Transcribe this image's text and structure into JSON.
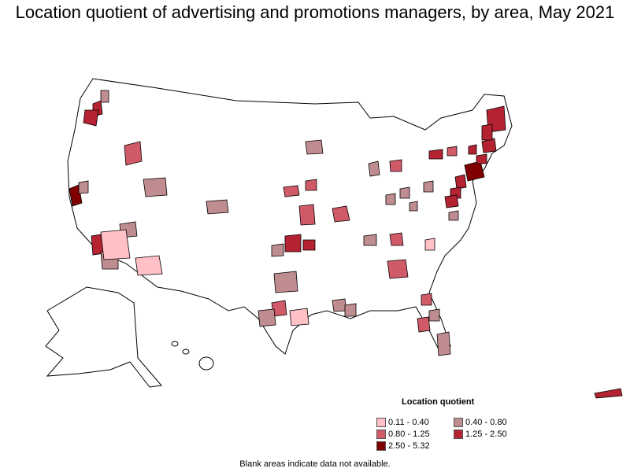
{
  "title": "Location quotient of advertising and promotions managers, by area, May 2021",
  "legend": {
    "title": "Location quotient",
    "items": [
      {
        "label": "0.11 - 0.40",
        "color": "#ffc0c6"
      },
      {
        "label": "0.40 - 0.80",
        "color": "#bf8c8f"
      },
      {
        "label": "0.80 - 1.25",
        "color": "#d05a68"
      },
      {
        "label": "1.25 - 2.50",
        "color": "#b52231"
      },
      {
        "label": "2.50 - 5.32",
        "color": "#800000"
      }
    ]
  },
  "note": "Blank areas indicate data not available.",
  "colors": {
    "outline": "#000000",
    "background": "#ffffff"
  }
}
